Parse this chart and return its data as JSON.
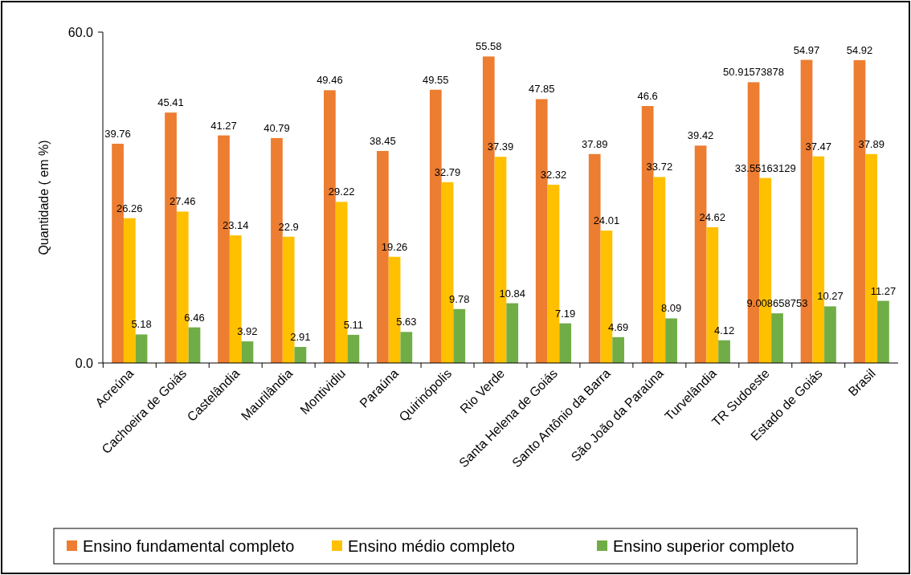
{
  "chart_data": {
    "type": "bar",
    "ylabel": "Quantidade ( em %)",
    "categories": [
      "Acreúna",
      "Cachoeira de Goiás",
      "Castelândia",
      "Maurilândia",
      "Montividiu",
      "Paraúna",
      "Quirinópolis",
      "Rio Verde",
      "Santa Helena de Goiás",
      "Santo Antônio da Barra",
      "São João da Paraúna",
      "Turvelândia",
      "TR Sudoeste",
      "Estado de Goiás",
      "Brasil"
    ],
    "series": [
      {
        "name": "Ensino fundamental completo",
        "color": "#ed7d31",
        "values": [
          39.76,
          45.41,
          41.27,
          40.79,
          49.46,
          38.45,
          49.55,
          55.58,
          47.85,
          37.89,
          46.6,
          39.42,
          50.91573878,
          54.97,
          54.92
        ]
      },
      {
        "name": "Ensino médio completo",
        "color": "#ffc000",
        "values": [
          26.26,
          27.46,
          23.14,
          22.9,
          29.22,
          19.26,
          32.79,
          37.39,
          32.32,
          24.01,
          33.72,
          24.62,
          33.55163129,
          37.47,
          37.89
        ]
      },
      {
        "name": "Ensino superior completo",
        "color": "#70ad47",
        "values": [
          5.18,
          6.46,
          3.92,
          2.91,
          5.11,
          5.63,
          9.78,
          10.84,
          7.19,
          4.69,
          8.09,
          4.12,
          9.008658753,
          10.27,
          11.27
        ]
      }
    ],
    "ylim": [
      0,
      60
    ],
    "yticks": [
      {
        "value": 0,
        "label": "0.0"
      },
      {
        "value": 60,
        "label": "60.0"
      }
    ],
    "data_labels": true,
    "legend": "bottom",
    "grid": false
  }
}
